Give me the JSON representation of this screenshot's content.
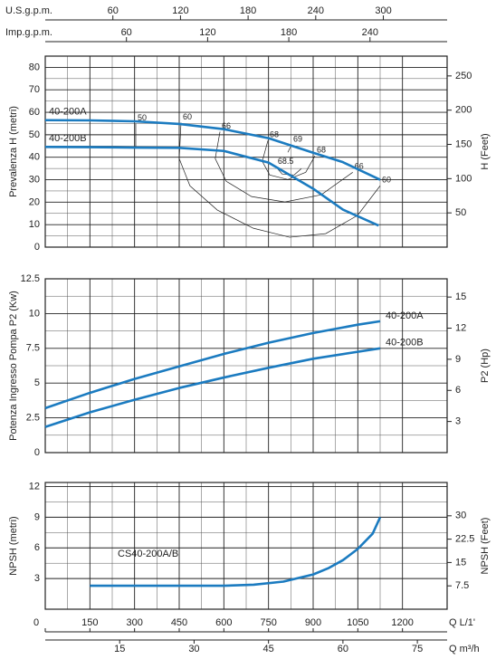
{
  "chart_data": [
    {
      "type": "line",
      "ylabel": "Prevalenza H (metri)",
      "y2label": "H (Feet)",
      "xlim": [
        0,
        1350
      ],
      "ylim": [
        0,
        85
      ],
      "yticks": [
        0,
        10,
        20,
        30,
        40,
        50,
        60,
        70,
        80
      ],
      "y2lim": [
        0,
        278.9
      ],
      "y2ticks": [
        50,
        100,
        150,
        200,
        250
      ],
      "top_axes": [
        {
          "label": "U.S.g.p.m.",
          "lim": [
            0,
            356.6
          ],
          "ticks": [
            60,
            120,
            180,
            240,
            300
          ]
        },
        {
          "label": "Imp.g.p.m.",
          "lim": [
            0,
            297
          ],
          "ticks": [
            60,
            120,
            180,
            240
          ]
        }
      ],
      "series": [
        {
          "name": "40-200A",
          "color": "#1b7bc0",
          "x": [
            0,
            150,
            300,
            450,
            600,
            750,
            900,
            1000,
            1125
          ],
          "values": [
            56.5,
            56.4,
            56,
            54.8,
            52.5,
            48.5,
            42,
            37.8,
            30
          ]
        },
        {
          "name": "40-200B",
          "color": "#1b7bc0",
          "x": [
            0,
            150,
            300,
            450,
            600,
            750,
            900,
            1000,
            1120
          ],
          "values": [
            44.6,
            44.5,
            44.3,
            44.2,
            42.8,
            37.6,
            26,
            16.7,
            9.6
          ]
        }
      ],
      "efficiency_curves": [
        {
          "label": "50",
          "x": [
            304,
            304
          ],
          "values": [
            55,
            44.5
          ]
        },
        {
          "label": "60",
          "x": [
            456,
            450,
            486,
            578,
            699,
            821,
            942,
            1049,
            1125
          ],
          "values": [
            55.4,
            39.4,
            27.3,
            16.5,
            8.4,
            4.4,
            6.0,
            14.1,
            27.3
          ]
        },
        {
          "label": "66",
          "x": [
            587,
            571,
            608,
            693,
            805,
            927,
            1033
          ],
          "values": [
            51.4,
            39.4,
            29.3,
            22.5,
            20.1,
            23.3,
            33.3
          ]
        },
        {
          "label": "68",
          "x": [
            748,
            729,
            754,
            815,
            875,
            906
          ],
          "values": [
            47.4,
            38.2,
            32.1,
            30.1,
            33.3,
            40.6
          ]
        },
        {
          "label": "68.5",
          "x": [
            775,
            796,
            836,
            860
          ],
          "values": [
            35.7,
            32.5,
            32.1,
            34.9
          ]
        },
        {
          "label": "69",
          "x": [
            827,
            815
          ],
          "values": [
            45.4,
            42.2
          ]
        }
      ]
    },
    {
      "type": "line",
      "ylabel": "Potenza Ingresso Pompa P2 (Kw)",
      "y2label": "P2 (Hp)",
      "xlim": [
        0,
        1350
      ],
      "ylim": [
        0,
        12.5
      ],
      "yticks": [
        0,
        2.5,
        5,
        7.5,
        10,
        12.5
      ],
      "y2lim": [
        0,
        16.76
      ],
      "y2ticks": [
        3,
        6,
        9,
        12,
        15
      ],
      "series": [
        {
          "name": "40-200A",
          "color": "#1b7bc0",
          "x": [
            0,
            150,
            300,
            450,
            600,
            750,
            900,
            1050,
            1125
          ],
          "values": [
            3.2,
            4.3,
            5.3,
            6.2,
            7.1,
            7.9,
            8.6,
            9.2,
            9.45
          ]
        },
        {
          "name": "40-200B",
          "color": "#1b7bc0",
          "x": [
            0,
            150,
            300,
            450,
            600,
            750,
            900,
            1050,
            1125
          ],
          "values": [
            1.85,
            2.9,
            3.8,
            4.65,
            5.4,
            6.1,
            6.75,
            7.25,
            7.5
          ]
        }
      ]
    },
    {
      "type": "line",
      "ylabel": "NPSH (metri)",
      "y2label": "NPSH (Feet)",
      "xlim": [
        0,
        1350
      ],
      "ylim": [
        0,
        12.4
      ],
      "yticks": [
        3,
        6,
        9,
        12
      ],
      "y2lim": [
        0,
        40.7
      ],
      "y2ticks": [
        7.5,
        15,
        22.5,
        30
      ],
      "xlabel": "Q L/1'",
      "xticks": [
        0,
        150,
        300,
        450,
        600,
        750,
        900,
        1050,
        1200
      ],
      "x2": {
        "label": "Q m³/h",
        "lim": [
          0,
          81
        ],
        "ticks": [
          15,
          30,
          45,
          60,
          75
        ]
      },
      "series": [
        {
          "name": "CS40-200A/B",
          "color": "#1b7bc0",
          "x": [
            150,
            300,
            450,
            600,
            700,
            800,
            900,
            950,
            1000,
            1050,
            1100,
            1125
          ],
          "values": [
            2.3,
            2.3,
            2.3,
            2.3,
            2.4,
            2.7,
            3.4,
            4.0,
            4.8,
            5.9,
            7.4,
            9.0
          ]
        }
      ]
    }
  ]
}
